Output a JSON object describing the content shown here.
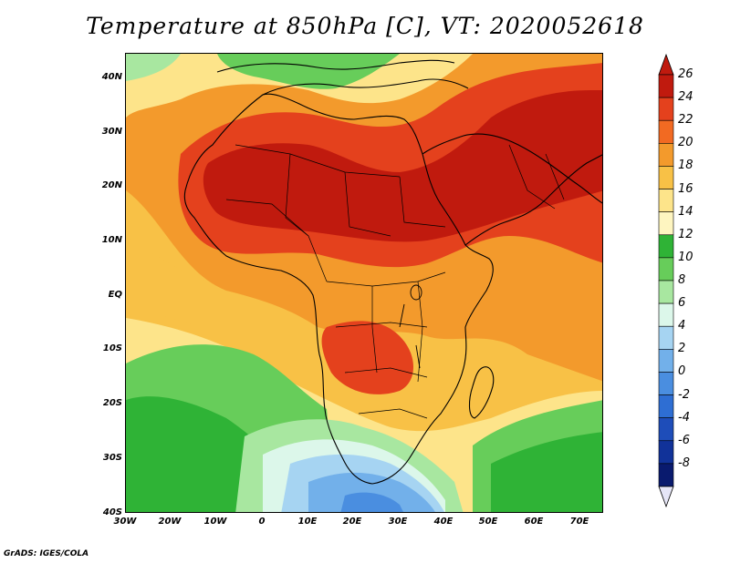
{
  "title": "Temperature at 850hPa [C], VT: 2020052618",
  "footer": "GrADS: IGES/COLA",
  "map": {
    "lat_labels": [
      "40N",
      "30N",
      "20N",
      "10N",
      "EQ",
      "10S",
      "20S",
      "30S",
      "40S"
    ],
    "lon_labels": [
      "30W",
      "20W",
      "10W",
      "0",
      "10E",
      "20E",
      "30E",
      "40E",
      "50E",
      "60E",
      "70E"
    ],
    "lat_range": [
      -40,
      45
    ],
    "lon_range": [
      -30,
      76
    ]
  },
  "colorbar": {
    "labels": [
      "26",
      "24",
      "22",
      "20",
      "18",
      "16",
      "14",
      "12",
      "10",
      "8",
      "6",
      "4",
      "2",
      "0",
      "-2",
      "-4",
      "-6",
      "-8"
    ],
    "colors": [
      "#c01a0e",
      "#e4411d",
      "#f26a22",
      "#f39a2c",
      "#f8c146",
      "#fde48a",
      "#fef5c0",
      "#2fb336",
      "#67cd5a",
      "#a8e7a0",
      "#dcf7ea",
      "#a6d4f2",
      "#72b0ea",
      "#4a8ee0",
      "#2e6ed3",
      "#1e4db9",
      "#113299",
      "#091a6e"
    ],
    "top_arrow_color": "#c01a0e",
    "bottom_arrow_color": "#e6e6f7"
  }
}
